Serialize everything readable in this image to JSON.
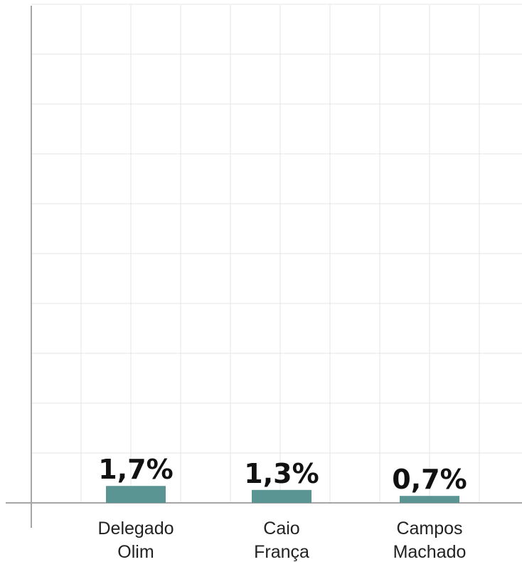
{
  "chart_data": {
    "type": "bar",
    "categories": [
      [
        "Delegado",
        "Olim"
      ],
      [
        "Caio",
        "França"
      ],
      [
        "Campos",
        "Machado"
      ]
    ],
    "values": [
      1.7,
      1.3,
      0.7
    ],
    "value_labels": [
      "1,7%",
      "1,3%",
      "0,7%"
    ],
    "title": "",
    "xlabel": "",
    "ylabel": "",
    "ylim": [
      0,
      50
    ],
    "grid": true,
    "colors": {
      "bar": "#5b9593",
      "grid": "#e6e6e6",
      "axis": "#a6a6a6"
    }
  }
}
